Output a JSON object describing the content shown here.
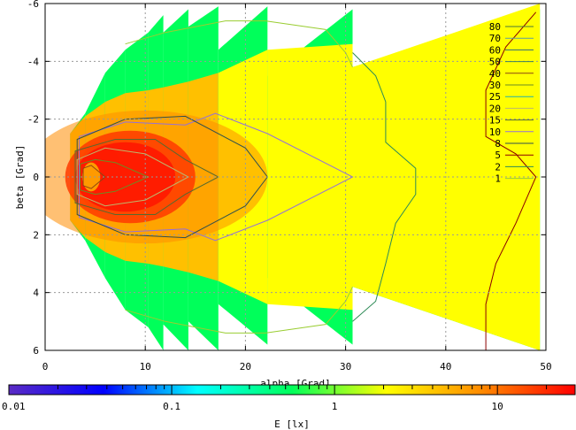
{
  "chart_data": {
    "type": "heatmap",
    "xlabel": "alpha [Grad]",
    "ylabel": "beta [Grad]",
    "xlim": [
      0,
      50
    ],
    "ylim": [
      6,
      -6
    ],
    "x_ticks": [
      "0",
      "10",
      "20",
      "30",
      "40",
      "50"
    ],
    "y_ticks": [
      "-6",
      "-4",
      "-2",
      "0",
      "2",
      "4",
      "6"
    ],
    "grid": true,
    "legend_position": "top-right",
    "colorbar": {
      "label": "E [lx]",
      "scale": "log",
      "range": [
        0.01,
        30
      ],
      "tick_labels": [
        "0.01",
        "0.1",
        "1",
        "10"
      ],
      "colors": [
        "#5a2bc4",
        "#0000ff",
        "#00ffff",
        "#00ff5a",
        "#ffff00",
        "#ff8c00",
        "#ff0000"
      ]
    },
    "contour_levels": [
      {
        "label": "80",
        "color": "#4a7a3a"
      },
      {
        "label": "70",
        "color": "#5f9ea0"
      },
      {
        "label": "60",
        "color": "#2d6a7a"
      },
      {
        "label": "50",
        "color": "#3f7f5f"
      },
      {
        "label": "40",
        "color": "#8b4513"
      },
      {
        "label": "30",
        "color": "#6b8e23"
      },
      {
        "label": "25",
        "color": "#20b2aa"
      },
      {
        "label": "20",
        "color": "#bdb76b"
      },
      {
        "label": "15",
        "color": "#556b2f"
      },
      {
        "label": "10",
        "color": "#9370db"
      },
      {
        "label": "8",
        "color": "#2f4f4f"
      },
      {
        "label": "5",
        "color": "#8b0000"
      },
      {
        "label": "2",
        "color": "#2e8b57"
      },
      {
        "label": "1",
        "color": "#9acd32"
      }
    ],
    "bands": [
      {
        "x0": 2.5,
        "x1": 4.0,
        "top_in": -1.5,
        "top_out": -2.2,
        "bot_in": 1.5,
        "bot_out": 2.2,
        "lit_in": 1.5,
        "lit_out": 2.1
      },
      {
        "x0": 4.0,
        "x1": 6.0,
        "top_in": -2.2,
        "top_out": -3.6,
        "bot_in": 2.2,
        "bot_out": 3.5,
        "lit_in": 2.1,
        "lit_out": 2.6
      },
      {
        "x0": 6.0,
        "x1": 8.0,
        "top_in": -3.6,
        "top_out": -4.4,
        "bot_in": 3.5,
        "bot_out": 4.6,
        "lit_in": 2.6,
        "lit_out": 2.9
      },
      {
        "x0": 8.0,
        "x1": 10.3,
        "top_in": -4.4,
        "top_out": -5.0,
        "bot_in": 4.6,
        "bot_out": 5.2,
        "lit_in": 2.9,
        "lit_out": 3.0
      },
      {
        "x0": 10.3,
        "x1": 11.8,
        "top_in": -5.0,
        "top_out": -5.6,
        "bot_in": 5.2,
        "bot_out": 6.0,
        "lit_in": 3.0,
        "lit_out": 3.1
      },
      {
        "x0": 11.8,
        "x1": 14.3,
        "top_in": -5.0,
        "top_out": -5.8,
        "bot_in": 5.1,
        "bot_out": 6.0,
        "lit_in": 3.1,
        "lit_out": 3.3
      },
      {
        "x0": 14.3,
        "x1": 17.3,
        "top_in": -5.2,
        "top_out": -5.9,
        "bot_in": 5.0,
        "bot_out": 6.0,
        "lit_in": 3.3,
        "lit_out": 3.6
      },
      {
        "x0": 17.3,
        "x1": 22.2,
        "top_in": -4.4,
        "top_out": -5.9,
        "bot_in": 4.4,
        "bot_out": 5.8,
        "lit_in": 3.6,
        "lit_out": 4.4
      },
      {
        "x0": 22.2,
        "x1": 30.7,
        "top_in": -3.5,
        "top_out": -5.8,
        "bot_in": 3.5,
        "bot_out": 5.8,
        "lit_in": 4.4,
        "lit_out": 4.6
      },
      {
        "x0": 30.7,
        "x1": 49.4,
        "top_in": -3.8,
        "top_out": -5.8,
        "bot_in": 3.8,
        "bot_out": 6.0,
        "lit_in": 3.8,
        "lit_out": 6.0
      }
    ],
    "cores": [
      {
        "cx": 5.5,
        "cy": 0.0,
        "rx": 2.2,
        "ry": 1.2,
        "color": "#ff7800"
      },
      {
        "cx": 8.5,
        "cy": 0.0,
        "rx": 6.5,
        "ry": 1.6,
        "color": "#ff3a00"
      },
      {
        "cx": 8.0,
        "cy": 0.0,
        "rx": 5.0,
        "ry": 1.2,
        "color": "#ff1400"
      },
      {
        "cx": 4.6,
        "cy": 0.0,
        "rx": 0.9,
        "ry": 0.5,
        "color": "#ffb000"
      }
    ],
    "contours": [
      {
        "level": "10",
        "x_right": 30.7,
        "top": [
          [
            3.4,
            -1.4
          ],
          [
            8,
            -1.9
          ],
          [
            14,
            -1.8
          ],
          [
            17,
            -2.2
          ],
          [
            22.2,
            -1.5
          ]
        ],
        "bot": [
          [
            3.4,
            1.4
          ],
          [
            8,
            1.9
          ],
          [
            14,
            1.8
          ],
          [
            17,
            2.2
          ],
          [
            22.2,
            1.5
          ]
        ]
      },
      {
        "level": "8",
        "x_right": 22.2,
        "top": [
          [
            3.2,
            -1.3
          ],
          [
            8,
            -2.0
          ],
          [
            14,
            -2.1
          ],
          [
            20,
            -1.0
          ]
        ],
        "bot": [
          [
            3.2,
            1.3
          ],
          [
            8,
            2.0
          ],
          [
            14,
            2.1
          ],
          [
            20,
            1.0
          ]
        ]
      },
      {
        "level": "15",
        "x_right": 17.3,
        "top": [
          [
            3.0,
            -0.9
          ],
          [
            7,
            -1.3
          ],
          [
            11,
            -1.3
          ],
          [
            14,
            -0.6
          ]
        ],
        "bot": [
          [
            3.0,
            0.9
          ],
          [
            7,
            1.3
          ],
          [
            11,
            1.3
          ],
          [
            14,
            0.6
          ]
        ]
      },
      {
        "level": "20",
        "x_right": 14.3,
        "top": [
          [
            3.2,
            -0.6
          ],
          [
            6,
            -1.0
          ],
          [
            10,
            -0.8
          ]
        ],
        "bot": [
          [
            3.2,
            0.6
          ],
          [
            6,
            1.0
          ],
          [
            10,
            0.8
          ]
        ]
      },
      {
        "level": "30",
        "x_right": 10.3,
        "top": [
          [
            3.5,
            -0.45
          ],
          [
            5,
            -0.6
          ],
          [
            7,
            -0.5
          ]
        ],
        "bot": [
          [
            3.5,
            0.45
          ],
          [
            5,
            0.6
          ],
          [
            7,
            0.5
          ]
        ]
      },
      {
        "level": "40",
        "x_right": 6.0,
        "top": [
          [
            3.8,
            -0.3
          ],
          [
            4.6,
            -0.4
          ]
        ],
        "bot": [
          [
            3.8,
            0.3
          ],
          [
            4.6,
            0.4
          ]
        ]
      }
    ],
    "outline_traces": [
      {
        "level": "1",
        "points": [
          [
            8,
            -4.6
          ],
          [
            12,
            -5.0
          ],
          [
            18,
            -5.4
          ],
          [
            22,
            -5.4
          ],
          [
            28,
            -5.1
          ],
          [
            30,
            -4.3
          ],
          [
            30.7,
            -3.8
          ]
        ]
      },
      {
        "level": "1",
        "points": [
          [
            8,
            4.6
          ],
          [
            12,
            5.0
          ],
          [
            18,
            5.4
          ],
          [
            22,
            5.4
          ],
          [
            28,
            5.1
          ],
          [
            30,
            4.3
          ],
          [
            30.7,
            3.8
          ]
        ]
      },
      {
        "level": "2",
        "points": [
          [
            30.7,
            -4.3
          ],
          [
            33,
            -3.5
          ],
          [
            34,
            -2.6
          ],
          [
            34,
            -1.2
          ],
          [
            37,
            -0.3
          ],
          [
            37,
            0.6
          ],
          [
            35,
            1.6
          ],
          [
            34,
            3.0
          ],
          [
            33,
            4.3
          ],
          [
            30.7,
            5.0
          ]
        ]
      },
      {
        "level": "5",
        "points": [
          [
            49,
            -5.7
          ],
          [
            46,
            -4.5
          ],
          [
            44,
            -3.0
          ],
          [
            44,
            -1.4
          ],
          [
            47,
            -0.8
          ],
          [
            49,
            0.0
          ],
          [
            47,
            1.6
          ],
          [
            45,
            3.0
          ],
          [
            44,
            4.4
          ],
          [
            44,
            6.0
          ]
        ]
      }
    ]
  }
}
